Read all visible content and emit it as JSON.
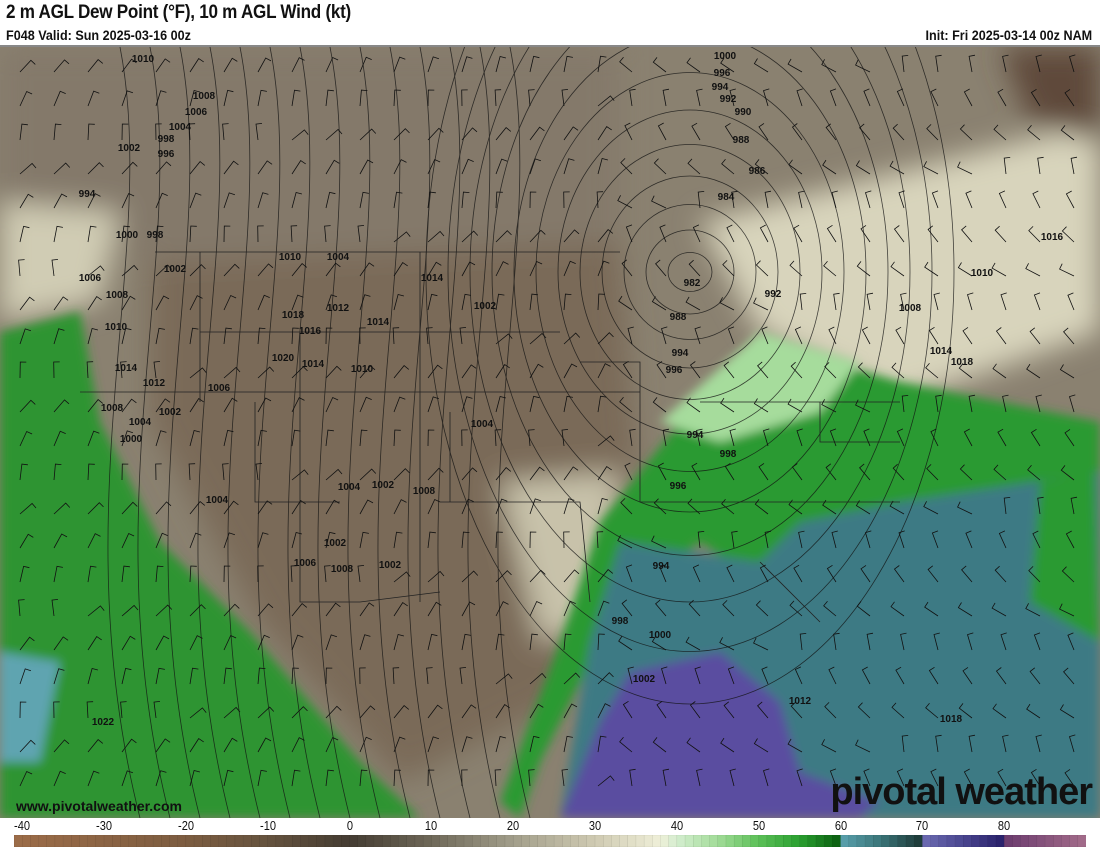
{
  "header": {
    "title": "2 m AGL Dew Point (°F), 10 m AGL Wind (kt)",
    "valid": "F048 Valid: Sun 2025-03-16 00z",
    "init": "Init: Fri 2025-03-14 00z NAM"
  },
  "map": {
    "variable": "2 m dew point (°F)",
    "overlays": [
      "mean sea level pressure isobars (mb)",
      "10 m wind barbs (kt)",
      "state and country borders"
    ],
    "low_center_pressure": "982",
    "isobar_labels": [
      "1010",
      "1008",
      "1006",
      "1004",
      "1002",
      "998",
      "996",
      "994",
      "1000",
      "998",
      "1002",
      "1004",
      "1006",
      "1008",
      "1010",
      "1012",
      "1014",
      "1018",
      "1016",
      "1020",
      "1014",
      "1010",
      "1014",
      "1012",
      "1006",
      "1008",
      "1004",
      "1002",
      "1000",
      "1004",
      "1002",
      "1006",
      "1008",
      "1002",
      "1004",
      "1002",
      "1008",
      "1004",
      "1002",
      "1014",
      "1010",
      "1022",
      "1000",
      "996",
      "994",
      "992",
      "990",
      "988",
      "986",
      "984",
      "982",
      "988",
      "992",
      "994",
      "996",
      "994",
      "998",
      "996",
      "994",
      "998",
      "1000",
      "1002",
      "1012",
      "1018",
      "1008",
      "1014",
      "1018",
      "1010",
      "1016"
    ],
    "colors": {
      "dry": "#7a6a55",
      "moist": "#2e9a34",
      "very_moist": "#3f7c86",
      "tropical": "#5a4e9c",
      "land_base": "#8c8270"
    }
  },
  "colorbar": {
    "ticks": [
      "-40",
      "-30",
      "-20",
      "-10",
      "0",
      "10",
      "20",
      "30",
      "40",
      "50",
      "60",
      "70",
      "80"
    ],
    "range": [
      -41,
      90
    ],
    "stops": [
      [
        -41,
        "#9c6c48"
      ],
      [
        -20,
        "#7c5c40"
      ],
      [
        -10,
        "#65523e"
      ],
      [
        0,
        "#443c32"
      ],
      [
        10,
        "#6e6858"
      ],
      [
        20,
        "#a29e8a"
      ],
      [
        30,
        "#cfcab2"
      ],
      [
        38,
        "#efefd8"
      ],
      [
        40,
        "#d4eed0"
      ],
      [
        45,
        "#a2dc98"
      ],
      [
        50,
        "#5cc058"
      ],
      [
        55,
        "#2aa030"
      ],
      [
        59.9,
        "#0a5e10"
      ],
      [
        60,
        "#5aa2ae"
      ],
      [
        65,
        "#3a7478"
      ],
      [
        69.9,
        "#1c3836"
      ],
      [
        70,
        "#6c6cb2"
      ],
      [
        75,
        "#4a4690"
      ],
      [
        79.9,
        "#28206a"
      ],
      [
        80,
        "#6a3a6e"
      ],
      [
        90,
        "#a46c8a"
      ]
    ]
  },
  "branding": {
    "watermark": "pivotal weather",
    "site": "www.pivotalweather.com"
  }
}
